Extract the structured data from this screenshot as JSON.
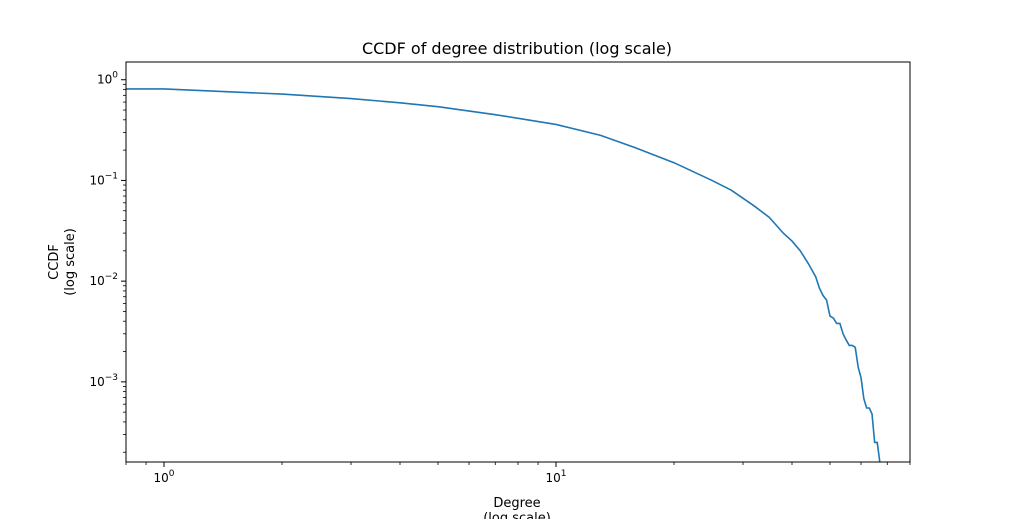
{
  "chart_data": {
    "type": "line",
    "title": "CCDF of degree distribution (log scale)",
    "xlabel": [
      "Degree",
      "(log scale)"
    ],
    "ylabel": [
      "CCDF",
      "(log scale)"
    ],
    "xscale": "log",
    "yscale": "log",
    "xlim": [
      0.8,
      80
    ],
    "ylim": [
      0.00016,
      1.5
    ],
    "grid": false,
    "line_color": "#1f77b4",
    "xticks": [
      {
        "value": 1,
        "base": "10",
        "exp": "0"
      },
      {
        "value": 10,
        "base": "10",
        "exp": "1"
      }
    ],
    "yticks": [
      {
        "value": 1,
        "base": "10",
        "exp": "0"
      },
      {
        "value": 0.1,
        "base": "10",
        "exp": "−1"
      },
      {
        "value": 0.01,
        "base": "10",
        "exp": "−2"
      },
      {
        "value": 0.001,
        "base": "10",
        "exp": "−3"
      }
    ],
    "x": [
      0.8,
      1,
      2,
      3,
      4,
      5,
      7,
      10,
      13,
      16,
      20,
      25,
      28,
      32,
      35,
      38,
      40,
      42,
      44,
      46,
      47,
      48,
      49,
      50,
      51,
      52,
      53,
      54,
      55,
      56,
      57,
      58,
      59,
      60,
      61,
      62,
      63,
      64,
      65,
      66,
      67
    ],
    "y": [
      0.81,
      0.81,
      0.72,
      0.65,
      0.59,
      0.54,
      0.45,
      0.36,
      0.28,
      0.21,
      0.15,
      0.1,
      0.08,
      0.056,
      0.043,
      0.03,
      0.025,
      0.02,
      0.015,
      0.011,
      0.0085,
      0.0072,
      0.0065,
      0.0045,
      0.0043,
      0.0038,
      0.0038,
      0.003,
      0.0026,
      0.0023,
      0.0023,
      0.0022,
      0.0014,
      0.0011,
      0.00068,
      0.00055,
      0.00055,
      0.00048,
      0.00025,
      0.00025,
      0.00016
    ]
  }
}
